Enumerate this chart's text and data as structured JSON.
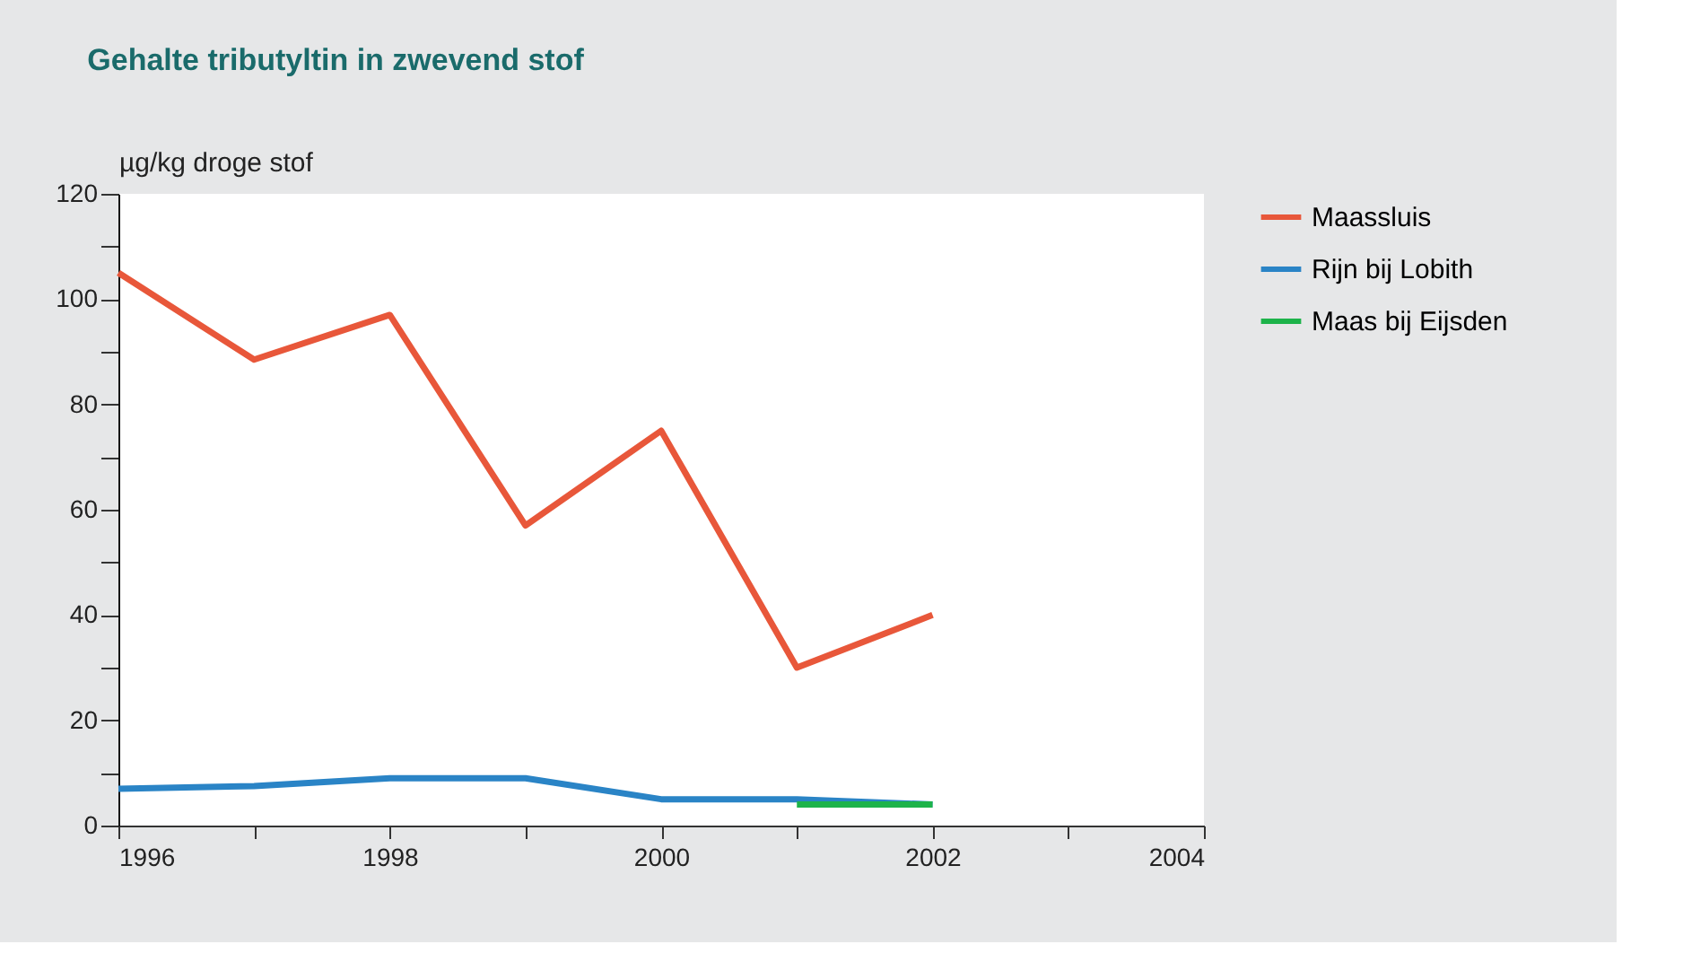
{
  "chart_data": {
    "type": "line",
    "title": "Gehalte tributyltin in zwevend stof",
    "ylabel": "µg/kg droge stof",
    "x": [
      1996,
      1997,
      1998,
      1999,
      2000,
      2001,
      2002
    ],
    "series": [
      {
        "name": "Maassluis",
        "color": "#e8573a",
        "values": [
          105,
          88.5,
          97,
          57,
          75,
          30,
          40
        ]
      },
      {
        "name": "Rijn bij Lobith",
        "color": "#2a84c6",
        "values": [
          7,
          7.5,
          9,
          9,
          5,
          5,
          4
        ]
      },
      {
        "name": "Maas bij Eijsden",
        "color": "#1db34a",
        "x": [
          2001,
          2002
        ],
        "values": [
          4,
          4
        ]
      }
    ],
    "xlim": [
      1996,
      2004
    ],
    "xticks": [
      1996,
      {
        "value": 1997,
        "label": null
      },
      1998,
      {
        "value": 1999,
        "label": null
      },
      2000,
      {
        "value": 2001,
        "label": null
      },
      2002,
      {
        "value": 2003,
        "label": null
      },
      2004
    ],
    "ylim": [
      0,
      120
    ],
    "yticks": [
      0,
      {
        "value": 10,
        "label": null
      },
      20,
      {
        "value": 30,
        "label": null
      },
      40,
      {
        "value": 50,
        "label": null
      },
      60,
      {
        "value": 70,
        "label": null
      },
      80,
      {
        "value": 90,
        "label": null
      },
      100,
      {
        "value": 110,
        "label": null
      },
      120
    ],
    "grid": false,
    "legend": "right",
    "marker": "none",
    "line_style": "solid"
  }
}
